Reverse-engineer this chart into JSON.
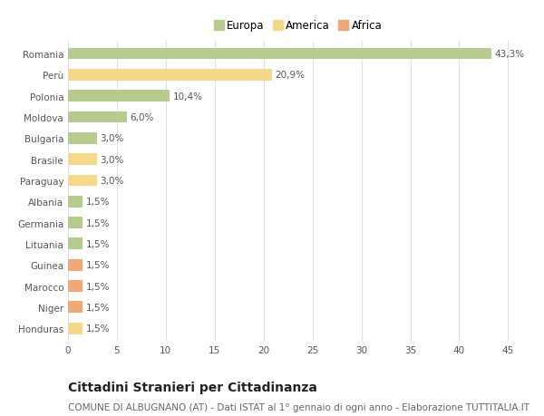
{
  "categories": [
    "Romania",
    "Perù",
    "Polonia",
    "Moldova",
    "Bulgaria",
    "Brasile",
    "Paraguay",
    "Albania",
    "Germania",
    "Lituania",
    "Guinea",
    "Marocco",
    "Niger",
    "Honduras"
  ],
  "values": [
    43.3,
    20.9,
    10.4,
    6.0,
    3.0,
    3.0,
    3.0,
    1.5,
    1.5,
    1.5,
    1.5,
    1.5,
    1.5,
    1.5
  ],
  "labels": [
    "43,3%",
    "20,9%",
    "10,4%",
    "6,0%",
    "3,0%",
    "3,0%",
    "3,0%",
    "1,5%",
    "1,5%",
    "1,5%",
    "1,5%",
    "1,5%",
    "1,5%",
    "1,5%"
  ],
  "continents": [
    "Europa",
    "America",
    "Europa",
    "Europa",
    "Europa",
    "America",
    "America",
    "Europa",
    "Europa",
    "Europa",
    "Africa",
    "Africa",
    "Africa",
    "America"
  ],
  "colors": {
    "Europa": "#b5cc8e",
    "America": "#f5d98b",
    "Africa": "#f0a878"
  },
  "xlim": [
    0,
    47
  ],
  "xticks": [
    0,
    5,
    10,
    15,
    20,
    25,
    30,
    35,
    40,
    45
  ],
  "title": "Cittadini Stranieri per Cittadinanza",
  "subtitle": "COMUNE DI ALBUGNANO (AT) - Dati ISTAT al 1° gennaio di ogni anno - Elaborazione TUTTITALIA.IT",
  "background_color": "#ffffff",
  "grid_color": "#e0e0e0",
  "bar_height": 0.55,
  "label_fontsize": 7.5,
  "tick_fontsize": 7.5,
  "title_fontsize": 10,
  "subtitle_fontsize": 7.5
}
